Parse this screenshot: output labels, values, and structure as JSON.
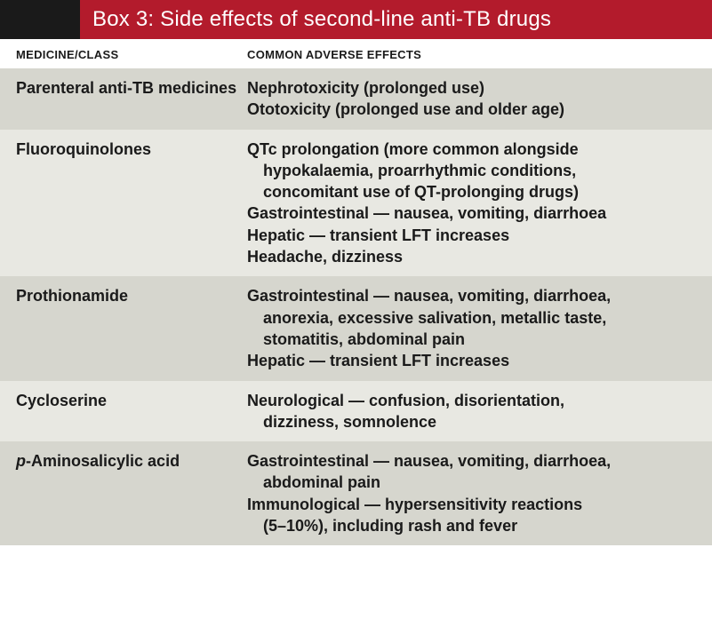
{
  "header": {
    "title": "Box 3: Side effects of second-line anti-TB drugs"
  },
  "columns": {
    "col1": "MEDICINE/CLASS",
    "col2": "COMMON ADVERSE EFFECTS"
  },
  "colors": {
    "header_black": "#1a1a1a",
    "header_red": "#b31b2c",
    "header_text": "#ffffff",
    "row_odd": "#d6d6ce",
    "row_even": "#e8e8e2",
    "text": "#1a1a1a"
  },
  "typography": {
    "header_fontsize": 24,
    "th_fontsize": 13,
    "cell_fontsize": 18,
    "cell_weight": 600
  },
  "rows": [
    {
      "medicine": "Parenteral anti-TB medicines",
      "effects": [
        [
          "Nephrotoxicity (prolonged use)"
        ],
        [
          "Ototoxicity (prolonged use and older age)"
        ]
      ]
    },
    {
      "medicine": "Fluoroquinolones",
      "effects": [
        [
          "QTc prolongation (more common alongside",
          "hypokalaemia, proarrhythmic conditions,",
          "concomitant use of QT-prolonging drugs)"
        ],
        [
          "Gastrointestinal — nausea, vomiting, diarrhoea"
        ],
        [
          "Hepatic —  transient LFT increases"
        ],
        [
          "Headache, dizziness"
        ]
      ]
    },
    {
      "medicine": "Prothionamide",
      "effects": [
        [
          "Gastrointestinal — nausea, vomiting, diarrhoea,",
          "anorexia, excessive salivation, metallic taste,",
          "stomatitis, abdominal pain"
        ],
        [
          "Hepatic — transient LFT increases"
        ]
      ]
    },
    {
      "medicine": "Cycloserine",
      "effects": [
        [
          "Neurological — confusion, disorientation,",
          "dizziness, somnolence"
        ]
      ]
    },
    {
      "medicine_html": "<span class=\"italic\">p</span>-Aminosalicylic acid",
      "medicine": "p-Aminosalicylic acid",
      "effects": [
        [
          "Gastrointestinal — nausea, vomiting, diarrhoea,",
          "abdominal pain"
        ],
        [
          "Immunological — hypersensitivity reactions",
          "(5–10%), including rash and fever"
        ]
      ]
    }
  ]
}
